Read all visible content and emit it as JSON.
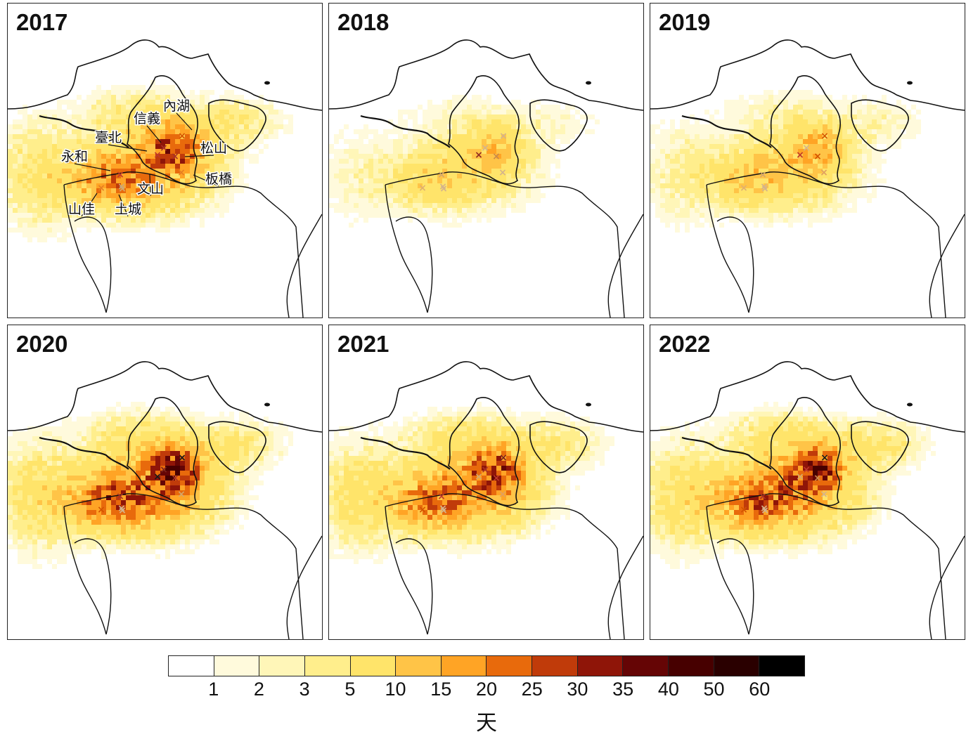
{
  "panels": [
    {
      "year": "2017",
      "intensity": 1.0,
      "rural": 0.9,
      "markers": [
        {
          "name": "臺北",
          "color": "#c0392b"
        },
        {
          "name": "信義",
          "color": "#a93226"
        },
        {
          "name": "內湖",
          "color": "#d35400"
        },
        {
          "name": "松山",
          "color": "#a93226"
        },
        {
          "name": "文山",
          "color": "#e67e22"
        },
        {
          "name": "永和",
          "color": "#d4a76a"
        },
        {
          "name": "板橋",
          "color": "#c0392b"
        },
        {
          "name": "山佳",
          "color": "#e67e22"
        },
        {
          "name": "土城",
          "color": "#c9a97a"
        }
      ]
    },
    {
      "year": "2018",
      "intensity": 0.45,
      "rural": 0.35,
      "markers": [
        {
          "name": "臺北",
          "color": "#922b21"
        },
        {
          "name": "信義",
          "color": "#d4b48c"
        },
        {
          "name": "內湖",
          "color": "#d4b48c"
        },
        {
          "name": "松山",
          "color": "#c98a4b"
        },
        {
          "name": "文山",
          "color": "#d4b48c"
        },
        {
          "name": "永和",
          "color": "#d4b48c"
        },
        {
          "name": "板橋",
          "color": "#d4a76a"
        },
        {
          "name": "山佳",
          "color": "#e0b070"
        },
        {
          "name": "土城",
          "color": "#d4b48c"
        }
      ]
    },
    {
      "year": "2019",
      "intensity": 0.55,
      "rural": 0.5,
      "markers": [
        {
          "name": "臺北",
          "color": "#c0392b"
        },
        {
          "name": "信義",
          "color": "#d4b48c"
        },
        {
          "name": "內湖",
          "color": "#d35400"
        },
        {
          "name": "松山",
          "color": "#d35400"
        },
        {
          "name": "文山",
          "color": "#e0a060"
        },
        {
          "name": "永和",
          "color": "#d4b48c"
        },
        {
          "name": "板橋",
          "color": "#d4a76a"
        },
        {
          "name": "山佳",
          "color": "#e0b070"
        },
        {
          "name": "土城",
          "color": "#d4b48c"
        }
      ]
    },
    {
      "year": "2020",
      "intensity": 1.25,
      "rural": 1.0,
      "markers": [
        {
          "name": "臺北",
          "color": "#1a1a1a"
        },
        {
          "name": "信義",
          "color": "#7b241c"
        },
        {
          "name": "內湖",
          "color": "#1a1a1a"
        },
        {
          "name": "松山",
          "color": "#a93226"
        },
        {
          "name": "文山",
          "color": "#d4a76a"
        },
        {
          "name": "永和",
          "color": "#d4b48c"
        },
        {
          "name": "板橋",
          "color": "#a93226"
        },
        {
          "name": "山佳",
          "color": "#d35400"
        },
        {
          "name": "土城",
          "color": "#d4b48c"
        }
      ]
    },
    {
      "year": "2021",
      "intensity": 1.05,
      "rural": 0.95,
      "markers": [
        {
          "name": "臺北",
          "color": "#d4a76a"
        },
        {
          "name": "信義",
          "color": "#a93226"
        },
        {
          "name": "內湖",
          "color": "#7b241c"
        },
        {
          "name": "松山",
          "color": "#c0392b"
        },
        {
          "name": "文山",
          "color": "#e0a060"
        },
        {
          "name": "永和",
          "color": "#d4b48c"
        },
        {
          "name": "板橋",
          "color": "#c0392b"
        },
        {
          "name": "山佳",
          "color": "#d35400"
        },
        {
          "name": "土城",
          "color": "#d4b48c"
        }
      ]
    },
    {
      "year": "2022",
      "intensity": 1.15,
      "rural": 1.0,
      "markers": [
        {
          "name": "臺北",
          "color": "#d4a76a"
        },
        {
          "name": "信義",
          "color": "#c0392b"
        },
        {
          "name": "內湖",
          "color": "#1a1a1a"
        },
        {
          "name": "松山",
          "color": "#c98a4b"
        },
        {
          "name": "文山",
          "color": "#d4b48c"
        },
        {
          "name": "永和",
          "color": "#d4b48c"
        },
        {
          "name": "板橋",
          "color": "#a93226"
        },
        {
          "name": "山佳",
          "color": "#d35400"
        },
        {
          "name": "土城",
          "color": "#d4b48c"
        }
      ]
    }
  ],
  "station_labels": [
    "內湖",
    "信義",
    "臺北",
    "松山",
    "板橋",
    "文山",
    "永和",
    "山佳",
    "土城"
  ],
  "colorbar": {
    "colors": [
      "#ffffff",
      "#fffadc",
      "#fff6b8",
      "#ffee8c",
      "#ffe46a",
      "#ffc447",
      "#ffa425",
      "#e86a0c",
      "#c03b0a",
      "#8f1508",
      "#650505",
      "#470000",
      "#2a0000",
      "#000000"
    ],
    "ticks": [
      "1",
      "2",
      "3",
      "5",
      "10",
      "15",
      "20",
      "25",
      "30",
      "35",
      "40",
      "50",
      "60"
    ],
    "unit": "天"
  }
}
